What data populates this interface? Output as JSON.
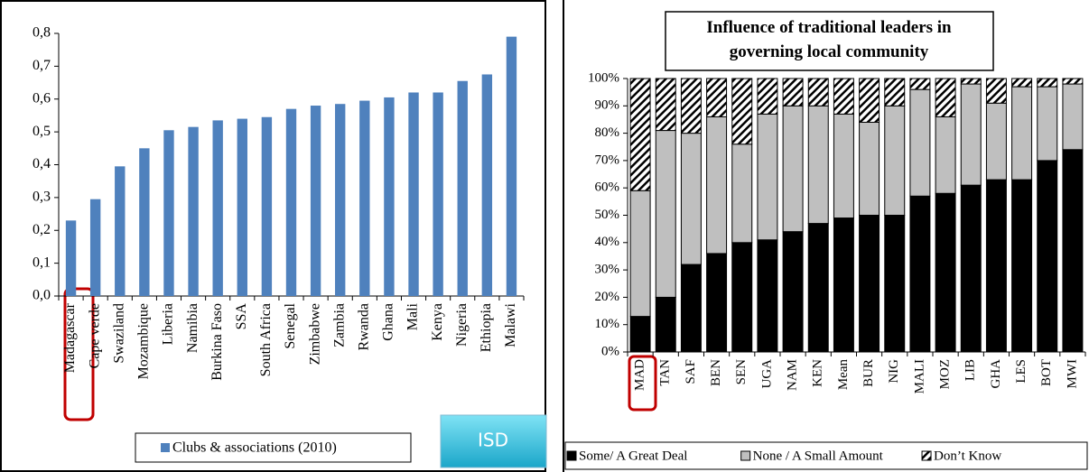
{
  "badge": "ISD",
  "chart_data": [
    {
      "type": "bar",
      "categories": [
        "Madagascar",
        "Cape verde",
        "Swaziland",
        "Mozambique",
        "Liberia",
        "Namibia",
        "Burkina Faso",
        "SSA",
        "South Africa",
        "Senegal",
        "Zimbabwe",
        "Zambia",
        "Rwanda",
        "Ghana",
        "Mali",
        "Kenya",
        "Nigeria",
        "Ethiopia",
        "Malawi"
      ],
      "series": [
        {
          "name": "Clubs & associations (2010)",
          "color": "#4f81bd",
          "values": [
            0.23,
            0.295,
            0.395,
            0.45,
            0.505,
            0.515,
            0.535,
            0.54,
            0.545,
            0.57,
            0.58,
            0.585,
            0.595,
            0.605,
            0.62,
            0.62,
            0.655,
            0.675,
            0.79
          ]
        }
      ],
      "ylim": [
        0,
        0.8
      ],
      "yticks": [
        {
          "value": 0,
          "label": "0,0"
        },
        {
          "value": 0.1,
          "label": "0,1"
        },
        {
          "value": 0.2,
          "label": "0,2"
        },
        {
          "value": 0.3,
          "label": "0,3"
        },
        {
          "value": 0.4,
          "label": "0,4"
        },
        {
          "value": 0.5,
          "label": "0,5"
        },
        {
          "value": 0.6,
          "label": "0,6"
        },
        {
          "value": 0.7,
          "label": "0,7"
        },
        {
          "value": 0.8,
          "label": "0,8"
        }
      ],
      "grid": false,
      "legend": "bottom"
    },
    {
      "type": "stacked_bar",
      "title": "Influence of traditional leaders in governing local community",
      "categories": [
        "MAD",
        "TAN",
        "SAF",
        "BEN",
        "SEN",
        "UGA",
        "NAM",
        "KEN",
        "Mean",
        "BUR",
        "NIG",
        "MALI",
        "MOZ",
        "LIB",
        "GHA",
        "LES",
        "BOT",
        "MWI"
      ],
      "series": [
        {
          "name": "Some/ A Great Deal",
          "color": "#000000",
          "values": [
            13,
            20,
            32,
            36,
            40,
            41,
            44,
            47,
            49,
            50,
            50,
            57,
            58,
            61,
            63,
            63,
            70,
            74
          ]
        },
        {
          "name": "None / A Small Amount",
          "color": "#bfbfbf",
          "values": [
            46,
            61,
            48,
            50,
            36,
            46,
            46,
            43,
            38,
            34,
            40,
            39,
            28,
            37,
            28,
            34,
            27,
            24
          ]
        },
        {
          "name": "Don’t Know",
          "color": "#ffffff",
          "pattern": "hatch",
          "values": [
            41,
            19,
            20,
            14,
            24,
            13,
            10,
            10,
            13,
            16,
            10,
            4,
            14,
            2,
            9,
            3,
            3,
            2
          ]
        }
      ],
      "ylim": [
        0,
        100
      ],
      "yticks": [
        {
          "value": 0,
          "label": "0%"
        },
        {
          "value": 10,
          "label": "10%"
        },
        {
          "value": 20,
          "label": "20%"
        },
        {
          "value": 30,
          "label": "30%"
        },
        {
          "value": 40,
          "label": "40%"
        },
        {
          "value": 50,
          "label": "50%"
        },
        {
          "value": 60,
          "label": "60%"
        },
        {
          "value": 70,
          "label": "70%"
        },
        {
          "value": 80,
          "label": "80%"
        },
        {
          "value": 90,
          "label": "90%"
        },
        {
          "value": 100,
          "label": "100%"
        }
      ],
      "grid": false,
      "legend": "bottom"
    }
  ]
}
